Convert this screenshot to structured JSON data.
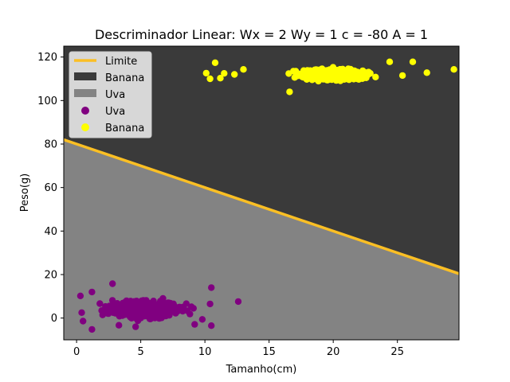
{
  "chart_data": {
    "type": "scatter",
    "title": "Descriminador Linear: Wx = 2 Wy = 1 c = -80 A = 1",
    "xlabel": "Tamanho(cm)",
    "ylabel": "Peso(g)",
    "xlim": [
      -1,
      29.8
    ],
    "ylim": [
      -10,
      125
    ],
    "xticks": [
      0,
      5,
      10,
      15,
      20,
      25
    ],
    "yticks": [
      0,
      20,
      40,
      60,
      80,
      100,
      120
    ],
    "grid": false,
    "legend_position": "top-left",
    "boundary": {
      "name": "Limite",
      "wx": 2,
      "wy": 1,
      "c": -80,
      "color": "#fbbf24"
    },
    "regions": [
      {
        "name": "Banana",
        "color": "#3a3a3a"
      },
      {
        "name": "Uva",
        "color": "#838383"
      }
    ],
    "series": [
      {
        "name": "Uva",
        "color": "#800080",
        "cluster": {
          "x_range": [
            0,
            10.5
          ],
          "y_range": [
            -5,
            16
          ],
          "y_center": 4
        },
        "points": [
          [
            0.3,
            10.2
          ],
          [
            1.2,
            12
          ],
          [
            2.8,
            15.8
          ],
          [
            10.5,
            14
          ],
          [
            12.6,
            7.6
          ],
          [
            10.4,
            6.5
          ],
          [
            10.5,
            -3.5
          ],
          [
            9.8,
            -0.6
          ],
          [
            9.2,
            -2.9
          ],
          [
            8.3,
            4.2
          ],
          [
            1.2,
            -5.2
          ],
          [
            4.6,
            -4
          ],
          [
            0.5,
            -1.4
          ],
          [
            3.3,
            -3.3
          ],
          [
            0.4,
            2.5
          ]
        ]
      },
      {
        "name": "Banana",
        "color": "#ffff00",
        "cluster": {
          "x_range": [
            15,
            25
          ],
          "y_range": [
            105,
            120
          ],
          "y_center": 112
        },
        "points": [
          [
            10.1,
            112.6
          ],
          [
            10.8,
            117.4
          ],
          [
            10.4,
            110
          ],
          [
            11.2,
            110.3
          ],
          [
            11.5,
            112.5
          ],
          [
            12.3,
            112
          ],
          [
            13,
            114.3
          ],
          [
            16.6,
            104
          ],
          [
            26.2,
            117.8
          ],
          [
            27.3,
            112.8
          ],
          [
            29.4,
            114.3
          ],
          [
            24.4,
            117.8
          ],
          [
            25.4,
            111.5
          ]
        ]
      }
    ]
  }
}
